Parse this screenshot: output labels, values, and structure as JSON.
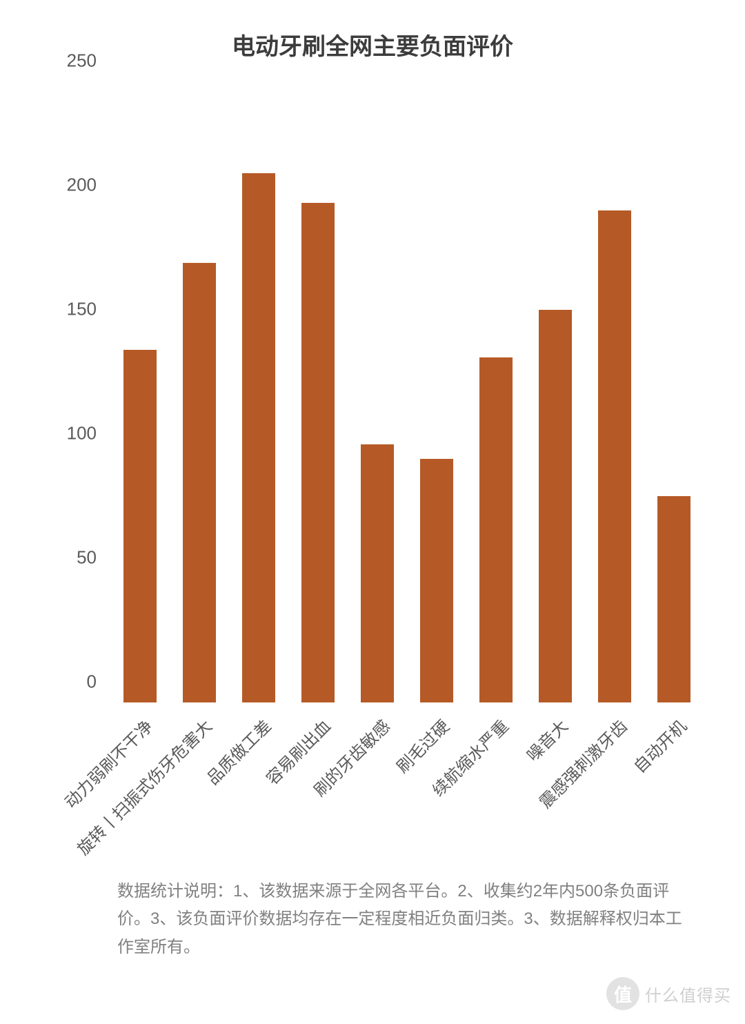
{
  "chart": {
    "type": "bar",
    "title": "电动牙刷全网主要负面评价",
    "title_fontsize": 34,
    "title_color": "#3c3c3c",
    "categories": [
      "动力弱刷不干净",
      "旋转丨扫振式伤牙危害大",
      "品质做工差",
      "容易刷出血",
      "刷的牙齿敏感",
      "刷毛过硬",
      "续航缩水严重",
      "噪音大",
      "震感强刺激牙齿",
      "自动开机"
    ],
    "values": [
      142,
      177,
      213,
      201,
      104,
      98,
      139,
      158,
      198,
      83
    ],
    "bar_color": "#b55a26",
    "background_color": "#ffffff",
    "ylim": [
      0,
      250
    ],
    "ytick_step": 50,
    "yticks": [
      0,
      50,
      100,
      150,
      200,
      250
    ],
    "tick_fontsize": 26,
    "tick_color": "#5a5a5a",
    "xlabel_fontsize": 24,
    "xlabel_rotation_deg": -45,
    "bar_width_ratio": 0.56
  },
  "footnote": {
    "text": "数据统计说明：1、该数据来源于全网各平台。2、收集约2年内500条负面评价。3、该负面评价数据均存在一定程度相近负面归类。3、数据解释权归本工作室所有。",
    "fontsize": 24,
    "color": "#808080"
  },
  "watermark": {
    "badge": "值",
    "text": "什么值得买"
  }
}
